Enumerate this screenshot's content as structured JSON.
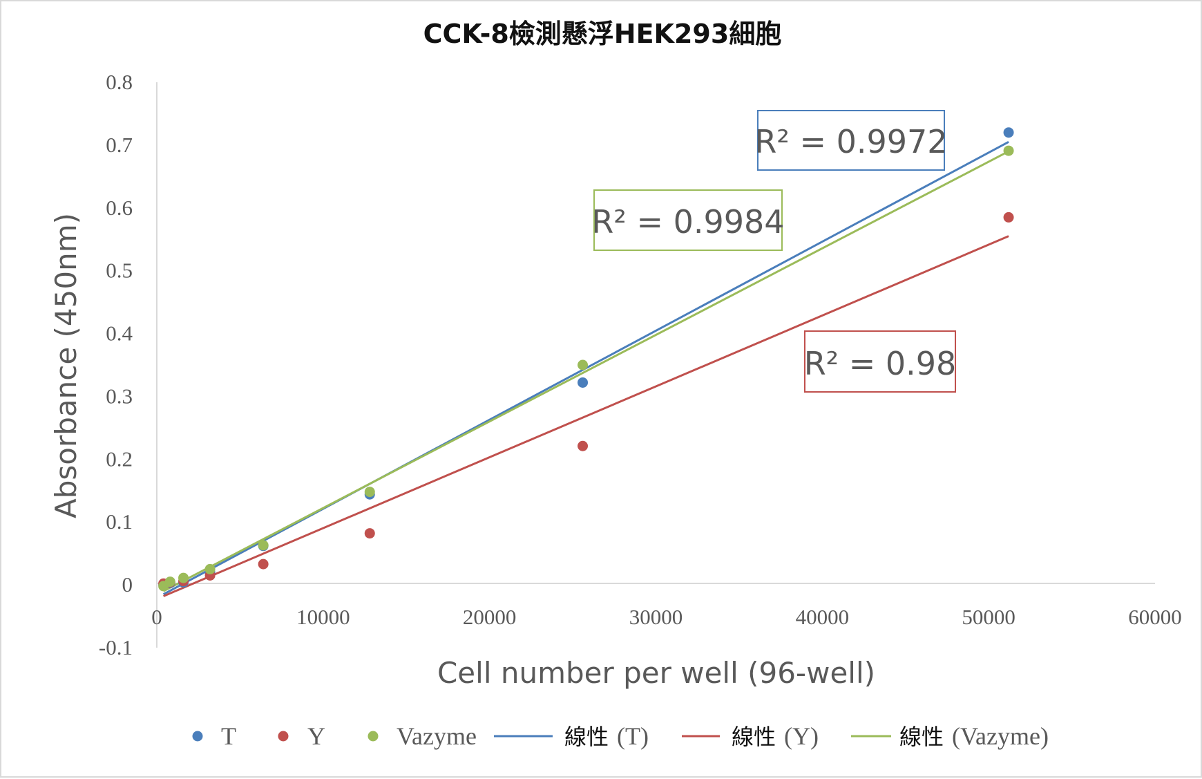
{
  "chart_data": {
    "type": "scatter",
    "title": "CCK-8檢測懸浮HEK293細胞",
    "xlabel": "Cell number per well (96-well)",
    "ylabel": "Absorbance (450nm)",
    "xlim": [
      0,
      60000
    ],
    "ylim": [
      -0.1,
      0.8
    ],
    "x_ticks": [
      "0",
      "10000",
      "20000",
      "30000",
      "40000",
      "50000",
      "60000"
    ],
    "y_ticks": [
      "0.8",
      "0.7",
      "0.6",
      "0.5",
      "0.4",
      "0.3",
      "0.2",
      "0.1",
      "0",
      "-0.1"
    ],
    "grid": false,
    "legend_position": "bottom",
    "series": [
      {
        "name": "T",
        "color": "#4a7ebb",
        "points": [
          [
            400,
            0.0
          ],
          [
            800,
            0.003
          ],
          [
            1600,
            0.004
          ],
          [
            3200,
            0.02
          ],
          [
            6400,
            0.062
          ],
          [
            12800,
            0.144
          ],
          [
            25600,
            0.322
          ],
          [
            51200,
            0.72
          ]
        ],
        "trendline": {
          "name": "線性 (T)",
          "x": [
            400,
            51200
          ],
          "y": [
            -0.015,
            0.705
          ]
        }
      },
      {
        "name": "Y",
        "color": "#c0504d",
        "points": [
          [
            400,
            0.002
          ],
          [
            800,
            0.004
          ],
          [
            1600,
            0.006
          ],
          [
            3200,
            0.015
          ],
          [
            6400,
            0.033
          ],
          [
            12800,
            0.082
          ],
          [
            25600,
            0.221
          ],
          [
            51200,
            0.585
          ]
        ],
        "trendline": {
          "name": "線性 (Y)",
          "x": [
            400,
            51200
          ],
          "y": [
            -0.018,
            0.555
          ]
        }
      },
      {
        "name": "Vazyme",
        "color": "#9bbb59",
        "points": [
          [
            400,
            -0.002
          ],
          [
            800,
            0.005
          ],
          [
            1600,
            0.011
          ],
          [
            3200,
            0.025
          ],
          [
            6400,
            0.063
          ],
          [
            12800,
            0.148
          ],
          [
            25600,
            0.35
          ],
          [
            51200,
            0.691
          ]
        ],
        "trendline": {
          "name": "線性 (Vazyme)",
          "x": [
            400,
            51200
          ],
          "y": [
            -0.01,
            0.69
          ]
        }
      }
    ],
    "legend": {
      "items": [
        {
          "kind": "marker",
          "label": "T",
          "color": "#4a7ebb"
        },
        {
          "kind": "marker",
          "label": "Y",
          "color": "#c0504d"
        },
        {
          "kind": "marker",
          "label": "Vazyme",
          "color": "#9bbb59"
        },
        {
          "kind": "line",
          "prefix": "線性",
          "suffix": "(T)",
          "color": "#4a7ebb"
        },
        {
          "kind": "line",
          "prefix": "線性",
          "suffix": "(Y)",
          "color": "#c0504d"
        },
        {
          "kind": "line",
          "prefix": "線性",
          "suffix": "(Vazyme)",
          "color": "#9bbb59"
        }
      ]
    },
    "annotations": [
      {
        "text": "R² = 0.9972",
        "color": "#4a7ebb"
      },
      {
        "text": "R² = 0.9984",
        "color": "#9bbb59"
      },
      {
        "text": "R² = 0.98",
        "color": "#c0504d"
      }
    ]
  }
}
